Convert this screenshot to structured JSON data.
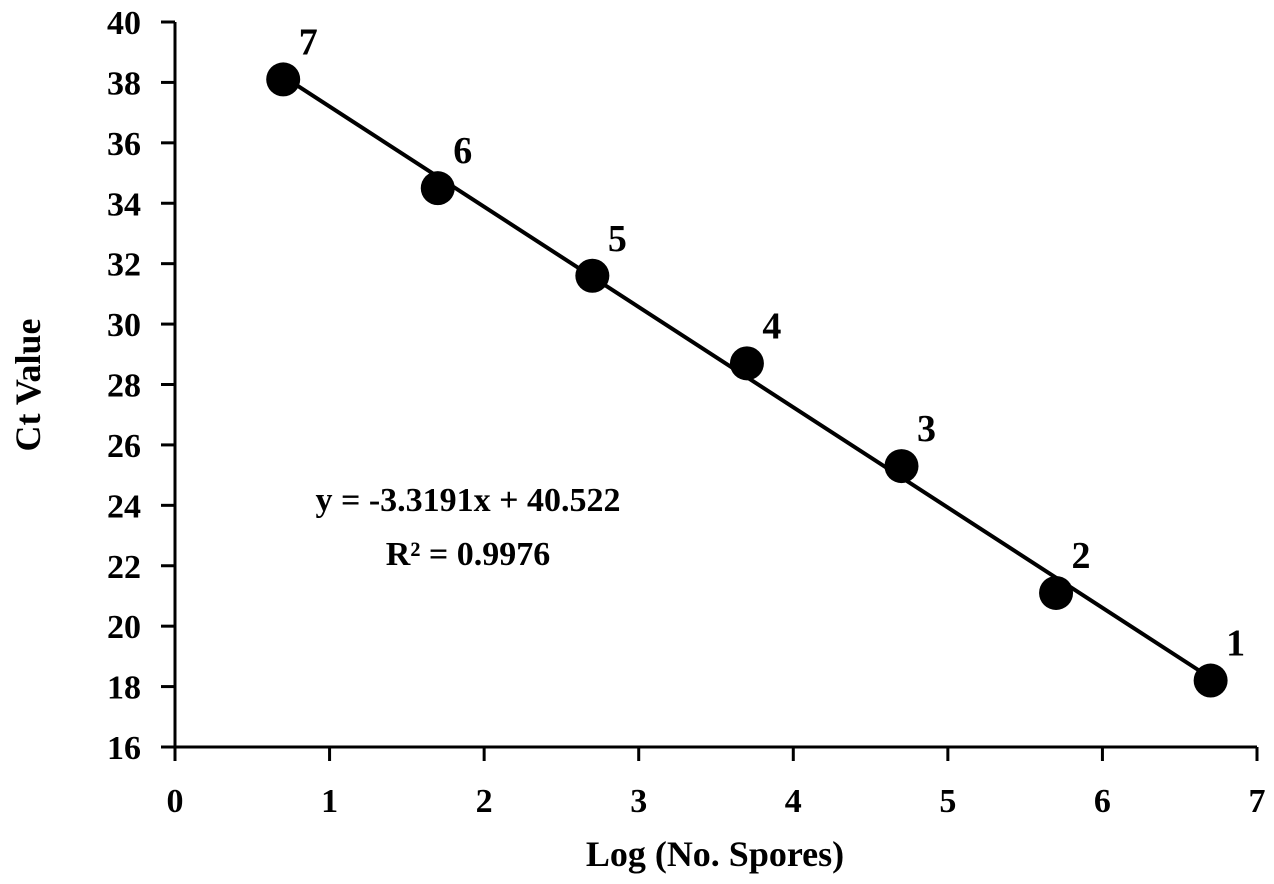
{
  "chart_data": {
    "type": "scatter",
    "title": "",
    "xlabel": "Log (No. Spores)",
    "ylabel": "Ct Value",
    "xlim": [
      0,
      7
    ],
    "ylim": [
      16,
      40
    ],
    "x_ticks": [
      "0",
      "1",
      "2",
      "3",
      "4",
      "5",
      "6",
      "7"
    ],
    "y_ticks": [
      "16",
      "18",
      "20",
      "22",
      "24",
      "26",
      "28",
      "30",
      "32",
      "34",
      "36",
      "38",
      "40"
    ],
    "grid": false,
    "legend": "none",
    "points": [
      {
        "label": "7",
        "x": 0.7,
        "y": 38.1
      },
      {
        "label": "6",
        "x": 1.7,
        "y": 34.5
      },
      {
        "label": "5",
        "x": 2.7,
        "y": 31.6
      },
      {
        "label": "4",
        "x": 3.7,
        "y": 28.7
      },
      {
        "label": "3",
        "x": 4.7,
        "y": 25.3
      },
      {
        "label": "2",
        "x": 5.7,
        "y": 21.1
      },
      {
        "label": "1",
        "x": 6.7,
        "y": 18.2
      }
    ],
    "trendline": {
      "type": "linear",
      "slope": -3.3191,
      "intercept": 40.522,
      "x_range": [
        0.7,
        6.7
      ]
    },
    "annotations": {
      "equation": "y = -3.3191x + 40.522",
      "r_squared": "R² = 0.9976"
    },
    "colors": {
      "marker": "#000000",
      "line": "#000000",
      "axis": "#000000"
    }
  }
}
